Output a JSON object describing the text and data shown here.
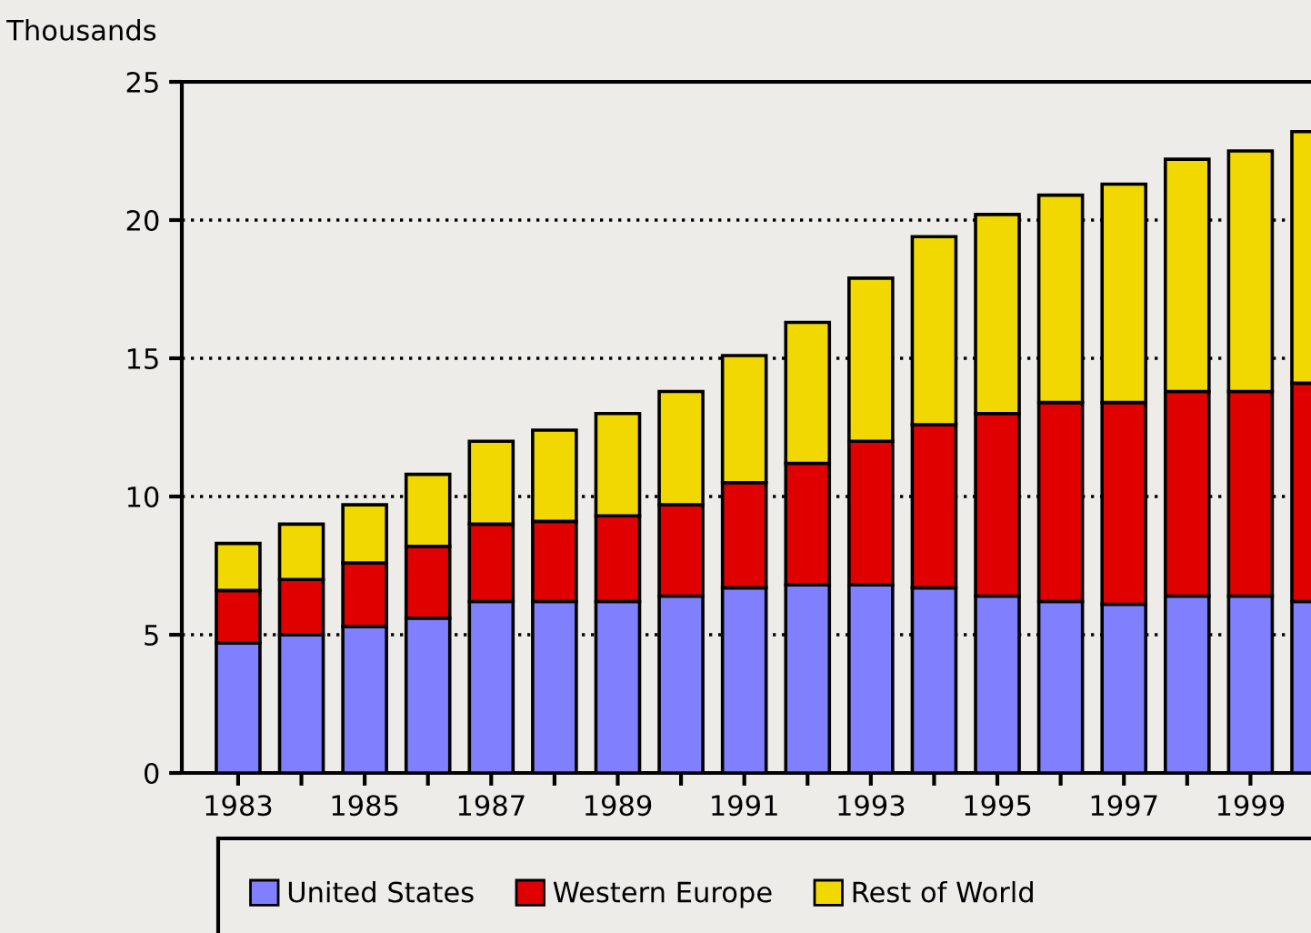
{
  "chart_data": {
    "type": "bar",
    "stacked": true,
    "ylabel": "Thousands",
    "categories": [
      "1983",
      null,
      "1985",
      null,
      "1987",
      null,
      "1989",
      null,
      "1991",
      null,
      "1993",
      null,
      "1995",
      null,
      "1997",
      null,
      "1999",
      null
    ],
    "series": [
      {
        "name": "United States",
        "color": "#8080ff",
        "values": [
          4.7,
          5.0,
          5.3,
          5.6,
          6.2,
          6.2,
          6.2,
          6.4,
          6.7,
          6.8,
          6.8,
          6.7,
          6.4,
          6.2,
          6.1,
          6.4,
          6.4,
          6.2
        ]
      },
      {
        "name": "Western Europe",
        "color": "#e00000",
        "values": [
          1.9,
          2.0,
          2.3,
          2.6,
          2.8,
          2.9,
          3.1,
          3.3,
          3.8,
          4.4,
          5.2,
          5.9,
          6.6,
          7.2,
          7.3,
          7.4,
          7.4,
          7.9
        ]
      },
      {
        "name": "Rest of World",
        "color": "#f0d800",
        "values": [
          1.7,
          2.0,
          2.1,
          2.6,
          3.0,
          3.3,
          3.7,
          4.1,
          4.6,
          5.1,
          5.9,
          6.8,
          7.2,
          7.5,
          7.9,
          8.4,
          8.7,
          9.1
        ]
      }
    ],
    "ylim": [
      0,
      25
    ],
    "yticks": [
      0,
      5,
      10,
      15,
      20,
      25
    ],
    "grid": "y",
    "legend": "bottom"
  }
}
